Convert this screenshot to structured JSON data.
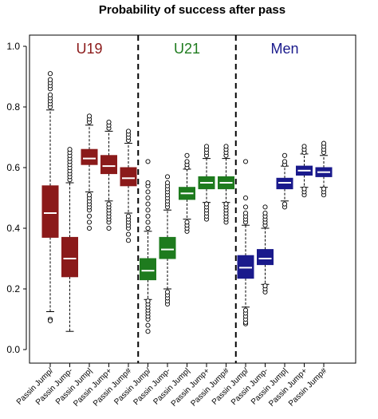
{
  "chart_data": {
    "type": "boxplot",
    "title": "Probability of success after pass",
    "xlabel": "",
    "ylabel": "",
    "ylim": [
      0,
      1
    ],
    "yticks": [
      "0.0",
      "0.2",
      "0.4",
      "0.6",
      "0.8",
      "1.0"
    ],
    "ytick_values": [
      0,
      0.2,
      0.4,
      0.6,
      0.8,
      1.0
    ],
    "grid": false,
    "legend": "none",
    "group_labels": [
      "U19",
      "U21",
      "Men"
    ],
    "group_colors": [
      "#8B1A1A",
      "#1E7B1E",
      "#1A1A8C"
    ],
    "categories": [
      "Passin Jump/",
      "Passin Jump-",
      "Passin Jump|",
      "Passin Jump+",
      "Passin Jump#",
      "Passin Jump/",
      "Passin Jump-",
      "Passin Jump|",
      "Passin Jump+",
      "Passin Jump#",
      "Passin Jump/",
      "Passin Jump-",
      "Passin Jump|",
      "Passin Jump+",
      "Passin Jump#"
    ],
    "boxes": [
      {
        "group": 0,
        "wlo": 0.125,
        "q1": 0.37,
        "med": 0.45,
        "q3": 0.54,
        "whi": 0.79,
        "out_lo": [
          0.1,
          0.095
        ],
        "out_hi": [
          0.8,
          0.81,
          0.82,
          0.83,
          0.84,
          0.86,
          0.87,
          0.88,
          0.89,
          0.91
        ]
      },
      {
        "group": 0,
        "wlo": 0.06,
        "q1": 0.24,
        "med": 0.3,
        "q3": 0.37,
        "whi": 0.55,
        "out_lo": [],
        "out_hi": [
          0.56,
          0.57,
          0.58,
          0.59,
          0.6,
          0.61,
          0.62,
          0.63,
          0.64,
          0.65,
          0.66
        ]
      },
      {
        "group": 0,
        "wlo": 0.52,
        "q1": 0.61,
        "med": 0.63,
        "q3": 0.66,
        "whi": 0.74,
        "out_lo": [
          0.4,
          0.42,
          0.44,
          0.46,
          0.47,
          0.48,
          0.49,
          0.5,
          0.51
        ],
        "out_hi": [
          0.75,
          0.76,
          0.77
        ]
      },
      {
        "group": 0,
        "wlo": 0.49,
        "q1": 0.58,
        "med": 0.605,
        "q3": 0.64,
        "whi": 0.72,
        "out_lo": [
          0.4,
          0.42,
          0.43,
          0.44,
          0.45,
          0.46,
          0.47,
          0.48
        ],
        "out_hi": [
          0.73,
          0.74,
          0.75
        ]
      },
      {
        "group": 0,
        "wlo": 0.45,
        "q1": 0.54,
        "med": 0.565,
        "q3": 0.6,
        "whi": 0.68,
        "out_lo": [
          0.36,
          0.38,
          0.4,
          0.41,
          0.42,
          0.43,
          0.44
        ],
        "out_hi": [
          0.69,
          0.7,
          0.71,
          0.72
        ]
      },
      {
        "group": 1,
        "wlo": 0.165,
        "q1": 0.23,
        "med": 0.26,
        "q3": 0.3,
        "whi": 0.39,
        "out_lo": [
          0.06,
          0.08,
          0.1,
          0.11,
          0.12,
          0.13,
          0.14,
          0.15,
          0.16
        ],
        "out_hi": [
          0.4,
          0.42,
          0.44,
          0.46,
          0.48,
          0.5,
          0.52,
          0.54,
          0.55,
          0.62
        ]
      },
      {
        "group": 1,
        "wlo": 0.2,
        "q1": 0.3,
        "med": 0.33,
        "q3": 0.37,
        "whi": 0.46,
        "out_lo": [
          0.15,
          0.16,
          0.17,
          0.18,
          0.19
        ],
        "out_hi": [
          0.47,
          0.48,
          0.49,
          0.5,
          0.51,
          0.52,
          0.53,
          0.54,
          0.55,
          0.57
        ]
      },
      {
        "group": 1,
        "wlo": 0.43,
        "q1": 0.495,
        "med": 0.515,
        "q3": 0.535,
        "whi": 0.595,
        "out_lo": [
          0.39,
          0.4,
          0.41,
          0.42
        ],
        "out_hi": [
          0.6,
          0.61,
          0.62,
          0.64
        ]
      },
      {
        "group": 1,
        "wlo": 0.485,
        "q1": 0.53,
        "med": 0.55,
        "q3": 0.57,
        "whi": 0.63,
        "out_lo": [
          0.43,
          0.44,
          0.45,
          0.46,
          0.47,
          0.48
        ],
        "out_hi": [
          0.64,
          0.65,
          0.66,
          0.67
        ]
      },
      {
        "group": 1,
        "wlo": 0.485,
        "q1": 0.53,
        "med": 0.55,
        "q3": 0.57,
        "whi": 0.63,
        "out_lo": [
          0.42,
          0.43,
          0.44,
          0.45,
          0.46,
          0.47,
          0.48
        ],
        "out_hi": [
          0.64,
          0.65,
          0.66,
          0.67
        ]
      },
      {
        "group": 2,
        "wlo": 0.14,
        "q1": 0.235,
        "med": 0.27,
        "q3": 0.31,
        "whi": 0.41,
        "out_lo": [
          0.085,
          0.09,
          0.1,
          0.11,
          0.12,
          0.13
        ],
        "out_hi": [
          0.42,
          0.43,
          0.44,
          0.45,
          0.47,
          0.5,
          0.62
        ]
      },
      {
        "group": 2,
        "wlo": 0.215,
        "q1": 0.28,
        "med": 0.3,
        "q3": 0.33,
        "whi": 0.4,
        "out_lo": [
          0.19,
          0.2,
          0.21
        ],
        "out_hi": [
          0.41,
          0.42,
          0.43,
          0.44,
          0.45,
          0.47
        ]
      },
      {
        "group": 2,
        "wlo": 0.49,
        "q1": 0.53,
        "med": 0.55,
        "q3": 0.565,
        "whi": 0.605,
        "out_lo": [
          0.47,
          0.48
        ],
        "out_hi": [
          0.61,
          0.62,
          0.64
        ]
      },
      {
        "group": 2,
        "wlo": 0.535,
        "q1": 0.575,
        "med": 0.59,
        "q3": 0.605,
        "whi": 0.645,
        "out_lo": [
          0.51,
          0.52,
          0.53
        ],
        "out_hi": [
          0.65,
          0.66,
          0.67
        ]
      },
      {
        "group": 2,
        "wlo": 0.535,
        "q1": 0.57,
        "med": 0.585,
        "q3": 0.6,
        "whi": 0.64,
        "out_lo": [
          0.51,
          0.52,
          0.53
        ],
        "out_hi": [
          0.65,
          0.66,
          0.67,
          0.68
        ]
      }
    ]
  }
}
